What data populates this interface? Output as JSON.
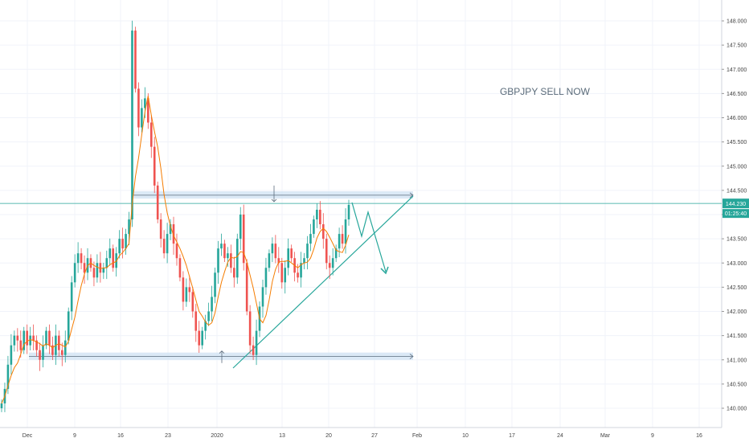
{
  "chart_data": {
    "type": "candlestick",
    "annotation": "GBPJPY SELL NOW",
    "price_badge": "144.230",
    "timer_badge": "01:25:40",
    "ylim": [
      139.8,
      148.2
    ],
    "y_ticks": [
      "148.000",
      "147.500",
      "147.000",
      "146.500",
      "146.000",
      "145.500",
      "145.000",
      "144.500",
      "144.000",
      "143.500",
      "143.000",
      "142.500",
      "142.000",
      "141.500",
      "141.000",
      "140.500",
      "140.000"
    ],
    "x_ticks": [
      "Dec",
      "9",
      "16",
      "23",
      "2020",
      "13",
      "20",
      "27",
      "Feb",
      "10",
      "17",
      "24",
      "Mar",
      "9",
      "16"
    ],
    "resistance_zone": [
      144.33,
      144.48
    ],
    "support_zone": [
      141.0,
      141.15
    ],
    "current_price": 144.23,
    "closes": [
      140.1,
      140.4,
      140.9,
      141.3,
      141.5,
      141.4,
      141.2,
      141.6,
      141.3,
      141.5,
      141.4,
      141.2,
      141.0,
      141.3,
      141.6,
      141.3,
      141.1,
      141.5,
      141.2,
      141.1,
      141.4,
      142.0,
      142.6,
      143.0,
      143.2,
      143.0,
      142.8,
      143.1,
      142.9,
      142.7,
      143.0,
      142.8,
      142.9,
      143.1,
      143.3,
      142.9,
      143.2,
      143.5,
      143.3,
      143.6,
      143.9,
      147.8,
      146.6,
      145.8,
      146.2,
      146.4,
      145.9,
      145.4,
      144.6,
      143.9,
      143.5,
      143.2,
      143.6,
      143.8,
      143.4,
      143.1,
      142.7,
      142.2,
      142.5,
      142.4,
      142.0,
      141.6,
      141.3,
      141.6,
      141.8,
      142.0,
      142.3,
      142.8,
      143.3,
      143.4,
      143.1,
      143.2,
      142.9,
      142.7,
      143.5,
      144.0,
      143.0,
      142.0,
      141.3,
      141.1,
      141.6,
      142.1,
      142.5,
      142.9,
      143.2,
      143.4,
      143.1,
      143.0,
      142.6,
      142.9,
      143.3,
      143.1,
      142.8,
      142.7,
      143.0,
      143.1,
      143.4,
      143.6,
      143.9,
      144.1,
      143.8,
      143.5,
      143.0,
      142.9,
      143.1,
      143.3,
      143.6,
      143.4,
      143.9,
      144.2
    ]
  }
}
